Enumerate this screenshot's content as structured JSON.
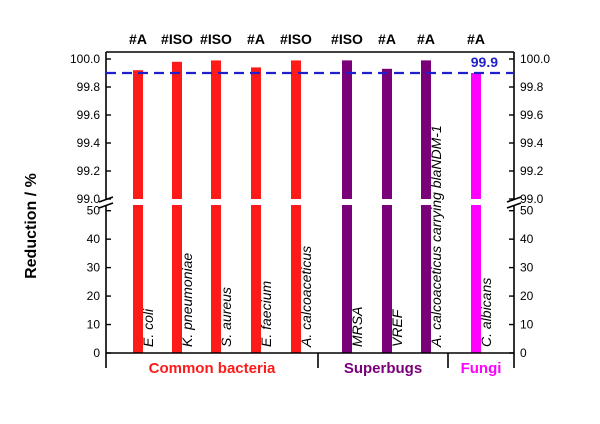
{
  "chart_data": {
    "type": "bar",
    "ylabel": "Reduction / %",
    "axis_break": true,
    "upper_panel": {
      "ylim": [
        99.0,
        100.05
      ],
      "ticks": [
        "99.0",
        "99.2",
        "99.4",
        "99.6",
        "99.8",
        "100.0"
      ]
    },
    "lower_panel": {
      "ylim": [
        0,
        52
      ],
      "ticks": [
        "0",
        "10",
        "20",
        "30",
        "40",
        "50"
      ]
    },
    "reference_line": {
      "value": 99.9,
      "label": "99.9",
      "color": "#1f1fcc",
      "style": "dashed"
    },
    "bars": [
      {
        "label": "E. coli",
        "value": 99.92,
        "top_label": "#A",
        "group": "Common bacteria",
        "color": "#ff1a1a"
      },
      {
        "label": "K. pneumoniae",
        "value": 99.98,
        "top_label": "#ISO",
        "group": "Common bacteria",
        "color": "#ff1a1a"
      },
      {
        "label": "S. aureus",
        "value": 99.99,
        "top_label": "#ISO",
        "group": "Common bacteria",
        "color": "#ff1a1a"
      },
      {
        "label": "E. faecium",
        "value": 99.94,
        "top_label": "#A",
        "group": "Common bacteria",
        "color": "#ff1a1a"
      },
      {
        "label": "A. calcoaceticus",
        "value": 99.99,
        "top_label": "#ISO",
        "group": "Common bacteria",
        "color": "#ff1a1a"
      },
      {
        "label": "MRSA",
        "value": 99.99,
        "top_label": "#ISO",
        "group": "Superbugs",
        "color": "#7a007a"
      },
      {
        "label": "VREF",
        "value": 99.93,
        "top_label": "#A",
        "group": "Superbugs",
        "color": "#7a007a"
      },
      {
        "label": "A. calcoaceticus carrying blaNDM-1",
        "value": 99.99,
        "top_label": "#A",
        "group": "Superbugs",
        "color": "#7a007a"
      },
      {
        "label": "C. albicans",
        "value": 99.9,
        "top_label": "#A",
        "group": "Fungi",
        "color": "#ff00ff"
      }
    ],
    "groups": [
      {
        "name": "Common bacteria",
        "color": "#ff1a1a"
      },
      {
        "name": "Superbugs",
        "color": "#7a007a"
      },
      {
        "name": "Fungi",
        "color": "#ff00ff"
      }
    ]
  }
}
